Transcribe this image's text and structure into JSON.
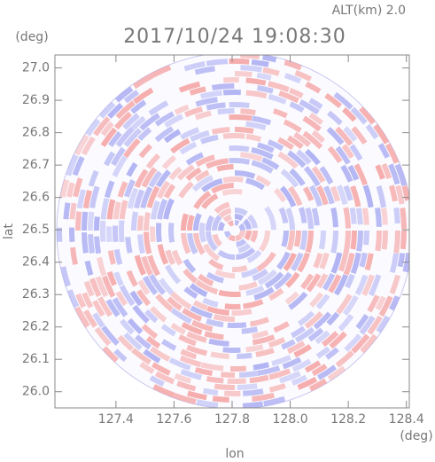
{
  "chart_data": {
    "type": "radar-ppi",
    "title": "2017/10/24 19:08:30",
    "subtitle": "ALT(km) 2.0",
    "x_label": "lon",
    "y_label": "lat",
    "x_unit": "(deg)",
    "y_unit": "(deg)",
    "xlim": [
      127.19,
      128.41
    ],
    "ylim": [
      25.95,
      27.04
    ],
    "xticks": [
      127.4,
      127.6,
      {
        "value": 127.8,
        "label": "127.8"
      },
      {
        "value": 128,
        "label": "128.0"
      },
      128.2,
      128.4
    ],
    "yticks": [
      {
        "value": 26,
        "label": "26.0"
      },
      26.1,
      26.2,
      26.3,
      26.4,
      26.5,
      26.6,
      26.7,
      26.8,
      26.9,
      {
        "value": 27,
        "label": "27.0"
      }
    ],
    "colors": [
      "#f5a3a3",
      "#a9abf2"
    ]
  }
}
